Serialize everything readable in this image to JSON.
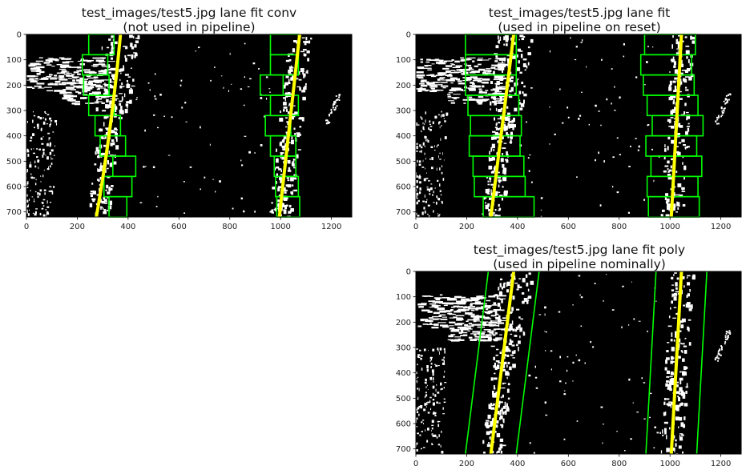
{
  "chart_data": [
    {
      "type": "image",
      "title_line1": "test_images/test5.jpg lane fit conv",
      "title_line2": "(not used in pipeline)",
      "xlim": [
        0,
        1280
      ],
      "ylim": [
        720,
        0
      ],
      "xticks": [
        "0",
        "200",
        "400",
        "600",
        "800",
        "1000",
        "1200"
      ],
      "yticks": [
        "0",
        "100",
        "200",
        "300",
        "400",
        "500",
        "600",
        "700"
      ],
      "left_lane_fit": [
        [
          370,
          0
        ],
        [
          330,
          360
        ],
        [
          275,
          720
        ]
      ],
      "right_lane_fit": [
        [
          1075,
          0
        ],
        [
          1035,
          360
        ],
        [
          995,
          720
        ]
      ],
      "windows_left": [
        [
          325,
          395
        ],
        [
          305,
          415
        ],
        [
          340,
          430
        ],
        [
          290,
          390
        ],
        [
          270,
          370
        ],
        [
          245,
          345
        ],
        [
          225,
          325
        ],
        [
          220,
          320
        ],
        [
          245,
          345
        ]
      ],
      "windows_right": [
        [
          985,
          1075
        ],
        [
          980,
          1070
        ],
        [
          975,
          1060
        ],
        [
          960,
          1060
        ],
        [
          940,
          1040
        ],
        [
          960,
          1070
        ],
        [
          920,
          1010
        ],
        [
          960,
          1070
        ],
        [
          960,
          1070
        ]
      ]
    },
    {
      "type": "image",
      "title_line1": "test_images/test5.jpg lane fit",
      "title_line2": "(used in pipeline on reset)",
      "xlim": [
        0,
        1280
      ],
      "ylim": [
        720,
        0
      ],
      "xticks": [
        "0",
        "200",
        "400",
        "600",
        "800",
        "1000",
        "1200"
      ],
      "yticks": [
        "0",
        "100",
        "200",
        "300",
        "400",
        "500",
        "600",
        "700"
      ],
      "left_lane_fit": [
        [
          385,
          0
        ],
        [
          340,
          360
        ],
        [
          295,
          720
        ]
      ],
      "right_lane_fit": [
        [
          1045,
          0
        ],
        [
          1025,
          360
        ],
        [
          1005,
          720
        ]
      ],
      "windows_left": [
        [
          265,
          465
        ],
        [
          230,
          430
        ],
        [
          225,
          425
        ],
        [
          210,
          410
        ],
        [
          215,
          415
        ],
        [
          205,
          405
        ],
        [
          195,
          395
        ],
        [
          195,
          395
        ],
        [
          195,
          395
        ]
      ],
      "windows_right": [
        [
          915,
          1115
        ],
        [
          910,
          1110
        ],
        [
          925,
          1125
        ],
        [
          905,
          1105
        ],
        [
          930,
          1130
        ],
        [
          910,
          1110
        ],
        [
          895,
          1095
        ],
        [
          885,
          1085
        ],
        [
          900,
          1100
        ]
      ]
    },
    {
      "type": "image",
      "title_line1": "test_images/test5.jpg lane fit poly",
      "title_line2": "(used in pipeline nominally)",
      "xlim": [
        0,
        1280
      ],
      "ylim": [
        720,
        0
      ],
      "xticks": [
        "0",
        "200",
        "400",
        "600",
        "800",
        "1000",
        "1200"
      ],
      "yticks": [
        "0",
        "100",
        "200",
        "300",
        "400",
        "500",
        "600",
        "700"
      ],
      "left_lane_fit": [
        [
          385,
          0
        ],
        [
          340,
          360
        ],
        [
          295,
          720
        ]
      ],
      "right_lane_fit": [
        [
          1045,
          0
        ],
        [
          1025,
          360
        ],
        [
          1005,
          720
        ]
      ],
      "left_margin_lines": [
        [
          [
            285,
            0
          ],
          [
            240,
            360
          ],
          [
            195,
            720
          ]
        ],
        [
          [
            485,
            0
          ],
          [
            440,
            360
          ],
          [
            395,
            720
          ]
        ]
      ],
      "right_margin_lines": [
        [
          [
            945,
            0
          ],
          [
            925,
            360
          ],
          [
            905,
            720
          ]
        ],
        [
          [
            1145,
            0
          ],
          [
            1125,
            360
          ],
          [
            1105,
            720
          ]
        ]
      ]
    }
  ],
  "colors": {
    "background": "#000000",
    "lane_pixels": "#ffffff",
    "fit_line": "#ffff00",
    "window": "#00ff00"
  }
}
